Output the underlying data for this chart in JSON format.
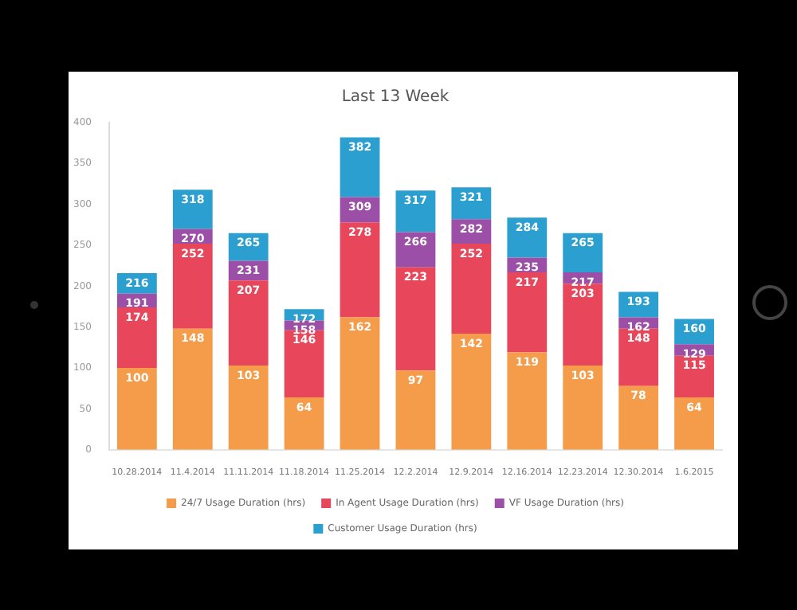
{
  "chart_data": {
    "type": "bar",
    "title": "Last 13 Week",
    "stacked": true,
    "categories": [
      "10.28.2014",
      "11.4.2014",
      "11.11.2014",
      "11.18.2014",
      "11.25.2014",
      "12.2.2014",
      "12.9.2014",
      "12.16.2014",
      "12.23.2014",
      "12.30.2014",
      "1.6.2015"
    ],
    "series": [
      {
        "name": "24/7 Usage Duration (hrs)",
        "color": "#f59c4a",
        "values": [
          100,
          148,
          103,
          64,
          162,
          97,
          142,
          119,
          103,
          78,
          64
        ],
        "value_labels": [
          "100",
          "148",
          "103",
          "64",
          "162",
          "97",
          "142",
          "119",
          "103",
          "78",
          "64"
        ]
      },
      {
        "name": "In Agent Usage Duration (hrs)",
        "color": "#e8475b",
        "values": [
          74,
          104,
          104,
          82,
          116,
          126,
          110,
          98,
          100,
          70,
          51
        ]
      },
      {
        "name": "VF Usage Duration (hrs)",
        "color": "#9b4fa6",
        "values": [
          17,
          18,
          24,
          12,
          31,
          43,
          30,
          18,
          14,
          14,
          14
        ]
      },
      {
        "name": "Customer Usage Duration (hrs)",
        "color": "#2a9fd0",
        "values": [
          25,
          48,
          34,
          14,
          73,
          51,
          39,
          49,
          48,
          31,
          31
        ]
      }
    ],
    "totals": [
      "216",
      "318",
      "265",
      "172",
      "382",
      "317",
      "321",
      "284",
      "265",
      "193",
      "160"
    ],
    "annotations": [
      {
        "text": "174",
        "x": "10.28.2014",
        "y": 174
      },
      {
        "text": "252",
        "x": "11.4.2014",
        "y": 252
      },
      {
        "text": "207",
        "x": "11.11.2014",
        "y": 207
      },
      {
        "text": "146",
        "x": "11.18.2014",
        "y": 146
      },
      {
        "text": "278",
        "x": "11.25.2014",
        "y": 278
      },
      {
        "text": "223",
        "x": "12.2.2014",
        "y": 223
      },
      {
        "text": "252",
        "x": "12.9.2014",
        "y": 252
      },
      {
        "text": "217",
        "x": "12.16.2014",
        "y": 217
      },
      {
        "text": "203",
        "x": "12.23.2014",
        "y": 203
      },
      {
        "text": "148",
        "x": "12.30.2014",
        "y": 148
      },
      {
        "text": "115",
        "x": "1.6.2015",
        "y": 115
      },
      {
        "text": "191",
        "x": "10.28.2014",
        "y": 191
      },
      {
        "text": "270",
        "x": "11.4.2014",
        "y": 270
      },
      {
        "text": "231",
        "x": "11.11.2014",
        "y": 231
      },
      {
        "text": "158",
        "x": "11.18.2014",
        "y": 158
      },
      {
        "text": "309",
        "x": "11.25.2014",
        "y": 309
      },
      {
        "text": "266",
        "x": "12.2.2014",
        "y": 266
      },
      {
        "text": "282",
        "x": "12.9.2014",
        "y": 282
      },
      {
        "text": "235",
        "x": "12.16.2014",
        "y": 235
      },
      {
        "text": "217",
        "x": "12.23.2014",
        "y": 217
      },
      {
        "text": "162",
        "x": "12.30.2014",
        "y": 162
      },
      {
        "text": "129",
        "x": "1.6.2015",
        "y": 129
      }
    ],
    "ylim": [
      0,
      400
    ],
    "yticks": [
      0,
      50,
      100,
      150,
      200,
      250,
      300,
      350,
      400
    ],
    "grid": false,
    "legend": "bottom"
  }
}
